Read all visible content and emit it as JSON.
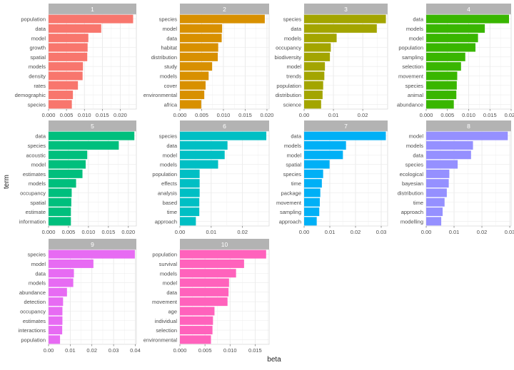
{
  "chart_data": {
    "type": "bar",
    "xlabel": "beta",
    "ylabel": "term",
    "grid": true,
    "legend": "none",
    "panels": [
      {
        "title": "1",
        "color": "#F8766D",
        "xlim": [
          0,
          0.0245
        ],
        "ticks": [
          0,
          0.005,
          0.01,
          0.015,
          0.02
        ],
        "tick_labels": [
          "0.000",
          "0.005",
          "0.010",
          "0.015",
          "0.020"
        ],
        "terms": [
          "population",
          "data",
          "model",
          "growth",
          "spatial",
          "models",
          "density",
          "rates",
          "demographic",
          "species"
        ],
        "values": [
          0.0236,
          0.0147,
          0.0111,
          0.0109,
          0.0108,
          0.0096,
          0.0095,
          0.0082,
          0.0068,
          0.0065
        ]
      },
      {
        "title": "2",
        "color": "#D89000",
        "xlim": [
          0,
          0.0205
        ],
        "ticks": [
          0,
          0.005,
          0.01,
          0.015,
          0.02
        ],
        "tick_labels": [
          "0.000",
          "0.005",
          "0.010",
          "0.015",
          "0.020"
        ],
        "terms": [
          "species",
          "model",
          "data",
          "habitat",
          "distribution",
          "study",
          "models",
          "cover",
          "environmental",
          "africa"
        ],
        "values": [
          0.0195,
          0.0097,
          0.0096,
          0.0088,
          0.0087,
          0.0074,
          0.0066,
          0.0059,
          0.0056,
          0.0049
        ]
      },
      {
        "title": "3",
        "color": "#A3A500",
        "xlim": [
          0,
          0.0285
        ],
        "ticks": [
          0,
          0.01,
          0.02
        ],
        "tick_labels": [
          "0.00",
          "0.01",
          "0.02"
        ],
        "terms": [
          "species",
          "data",
          "models",
          "occupancy",
          "biodiversity",
          "model",
          "trends",
          "population",
          "distribution",
          "science"
        ],
        "values": [
          0.0279,
          0.0248,
          0.0111,
          0.0091,
          0.0088,
          0.0071,
          0.0069,
          0.0065,
          0.0063,
          0.0058
        ]
      },
      {
        "title": "4",
        "color": "#39B600",
        "xlim": [
          0,
          0.02
        ],
        "ticks": [
          0,
          0.005,
          0.01,
          0.015,
          0.02
        ],
        "tick_labels": [
          "0.000",
          "0.005",
          "0.010",
          "0.015",
          "0.020"
        ],
        "terms": [
          "data",
          "models",
          "model",
          "population",
          "sampling",
          "selection",
          "movement",
          "species",
          "animal",
          "abundance"
        ],
        "values": [
          0.0195,
          0.0138,
          0.0122,
          0.0116,
          0.0092,
          0.0082,
          0.0073,
          0.0072,
          0.0071,
          0.0065
        ]
      },
      {
        "title": "5",
        "color": "#00BF7D",
        "xlim": [
          0,
          0.022
        ],
        "ticks": [
          0,
          0.005,
          0.01,
          0.015,
          0.02
        ],
        "tick_labels": [
          "0.000",
          "0.005",
          "0.010",
          "0.015",
          "0.020"
        ],
        "terms": [
          "data",
          "species",
          "acoustic",
          "model",
          "estimates",
          "models",
          "occupancy",
          "spatial",
          "estimate",
          "information"
        ],
        "values": [
          0.0215,
          0.0176,
          0.0097,
          0.0093,
          0.0085,
          0.0069,
          0.0058,
          0.0057,
          0.0056,
          0.0056
        ]
      },
      {
        "title": "6",
        "color": "#00BFC4",
        "xlim": [
          0,
          0.0285
        ],
        "ticks": [
          0,
          0.01,
          0.02
        ],
        "tick_labels": [
          "0.00",
          "0.01",
          "0.02"
        ],
        "terms": [
          "species",
          "data",
          "model",
          "models",
          "population",
          "effects",
          "analysis",
          "based",
          "time",
          "approach"
        ],
        "values": [
          0.0276,
          0.0152,
          0.0143,
          0.0122,
          0.0063,
          0.0063,
          0.0063,
          0.0062,
          0.0062,
          0.0051
        ]
      },
      {
        "title": "7",
        "color": "#00B0F6",
        "xlim": [
          0,
          0.0325
        ],
        "ticks": [
          0,
          0.01,
          0.02,
          0.03
        ],
        "tick_labels": [
          "0.00",
          "0.01",
          "0.02",
          "0.03"
        ],
        "terms": [
          "data",
          "models",
          "model",
          "spatial",
          "species",
          "time",
          "package",
          "movement",
          "sampling",
          "approach"
        ],
        "values": [
          0.0318,
          0.0163,
          0.0151,
          0.0099,
          0.0074,
          0.0069,
          0.0063,
          0.0061,
          0.0059,
          0.0049
        ]
      },
      {
        "title": "8",
        "color": "#9590FF",
        "xlim": [
          0,
          0.0305
        ],
        "ticks": [
          0,
          0.01,
          0.02,
          0.03
        ],
        "tick_labels": [
          "0.00",
          "0.01",
          "0.02",
          "0.03"
        ],
        "terms": [
          "model",
          "models",
          "data",
          "species",
          "ecological",
          "bayesian",
          "distribution",
          "time",
          "approach",
          "modelling"
        ],
        "values": [
          0.0293,
          0.0168,
          0.0161,
          0.0113,
          0.0083,
          0.0081,
          0.0074,
          0.0066,
          0.0059,
          0.0054
        ]
      },
      {
        "title": "9",
        "color": "#E76BF3",
        "xlim": [
          0,
          0.0405
        ],
        "ticks": [
          0,
          0.01,
          0.02,
          0.03,
          0.04
        ],
        "tick_labels": [
          "0.00",
          "0.01",
          "0.02",
          "0.03",
          "0.04"
        ],
        "terms": [
          "species",
          "model",
          "data",
          "models",
          "abundance",
          "detection",
          "occupancy",
          "estimates",
          "interactions",
          "population"
        ],
        "values": [
          0.0398,
          0.0207,
          0.0117,
          0.0114,
          0.0085,
          0.0067,
          0.0064,
          0.0064,
          0.0063,
          0.0053
        ]
      },
      {
        "title": "10",
        "color": "#FF62BC",
        "xlim": [
          0,
          0.0178
        ],
        "ticks": [
          0,
          0.005,
          0.01,
          0.015
        ],
        "tick_labels": [
          "0.000",
          "0.005",
          "0.010",
          "0.015"
        ],
        "terms": [
          "population",
          "survival",
          "models",
          "model",
          "data",
          "movement",
          "age",
          "individual",
          "selection",
          "environmental"
        ],
        "values": [
          0.0172,
          0.0128,
          0.0112,
          0.0098,
          0.0097,
          0.0095,
          0.0069,
          0.0066,
          0.0065,
          0.0062
        ]
      }
    ]
  }
}
